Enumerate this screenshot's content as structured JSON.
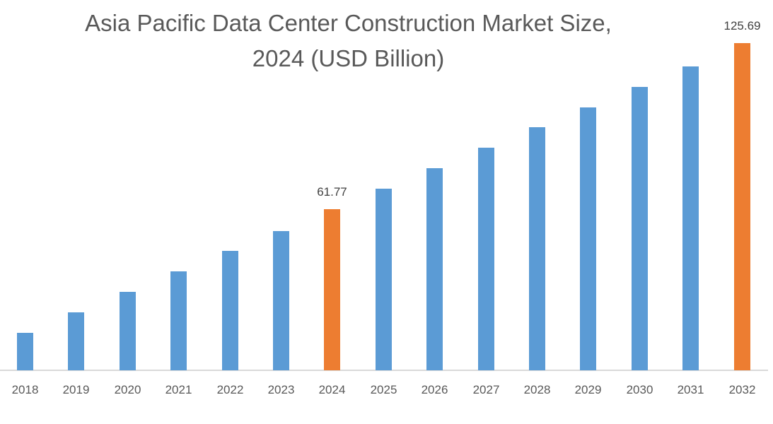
{
  "chart_data": {
    "type": "bar",
    "title": "Asia Pacific Data Center Construction Market Size, 2024 (USD Billion)",
    "title_lines": [
      "Asia Pacific Data Center Construction Market Size,",
      "2024 (USD Billion)"
    ],
    "xlabel": "",
    "ylabel": "",
    "categories": [
      "2018",
      "2019",
      "2020",
      "2021",
      "2022",
      "2023",
      "2024",
      "2025",
      "2026",
      "2027",
      "2028",
      "2029",
      "2030",
      "2031",
      "2032"
    ],
    "values": [
      14.5,
      22.3,
      30.1,
      37.9,
      45.8,
      53.6,
      61.77,
      69.8,
      77.6,
      85.4,
      93.3,
      101.1,
      108.9,
      116.8,
      125.69
    ],
    "data_labels": {
      "2024": "61.77",
      "2032": "125.69"
    },
    "highlighted": [
      "2024",
      "2032"
    ],
    "colors": {
      "default": "#5b9bd5",
      "highlight": "#ed7d31"
    },
    "ylim": [
      0,
      140
    ],
    "grid": false,
    "legend": null
  }
}
